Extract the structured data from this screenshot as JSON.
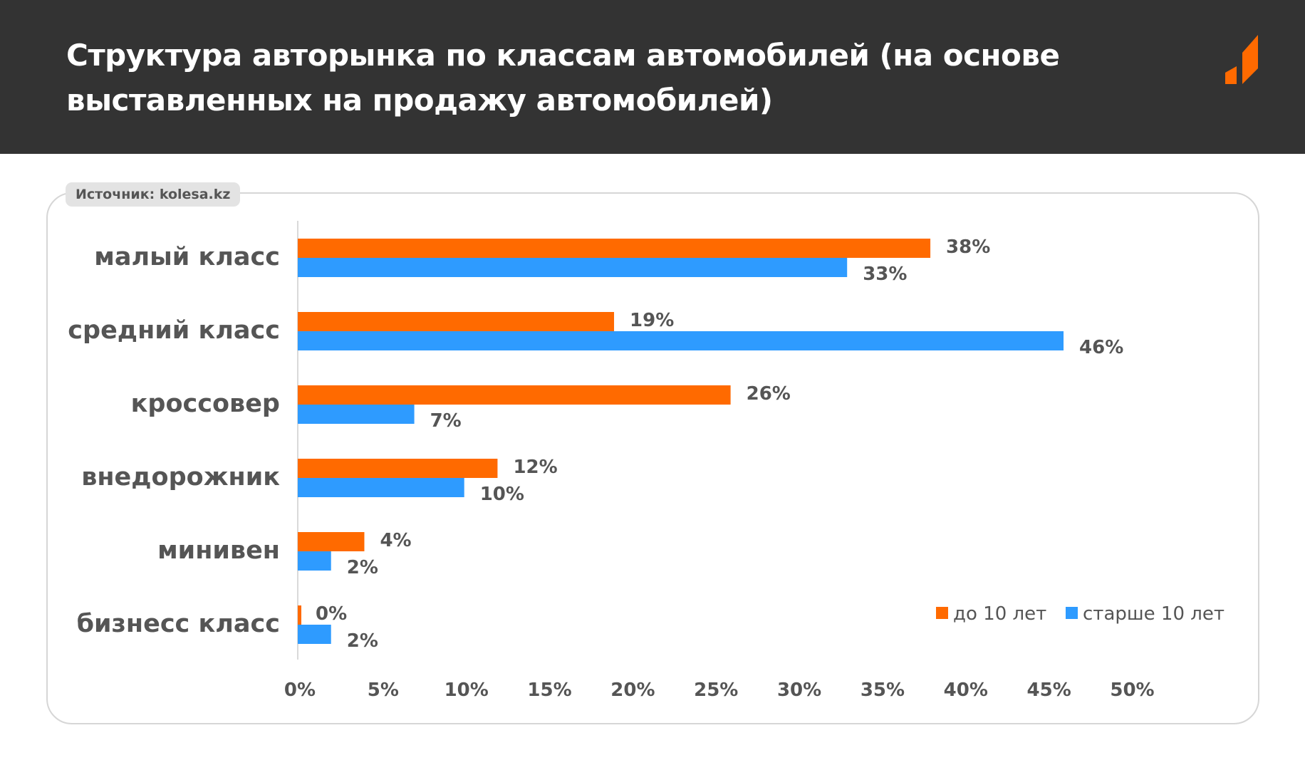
{
  "header": {
    "title": "Структура авторынка по классам автомобилей (на основе выставленных на продажу автомобилей)"
  },
  "source_label": "Источник: kolesa.kz",
  "colors": {
    "header_bg": "#333333",
    "accent": "#FF6A00",
    "series_1": "#FF6A00",
    "series_2": "#2E9BFF"
  },
  "chart_data": {
    "type": "bar",
    "orientation": "horizontal",
    "categories": [
      "малый класс",
      "средний класс",
      "кроссовер",
      "внедорожник",
      "минивен",
      "бизнесс класс"
    ],
    "series": [
      {
        "name": "до 10 лет",
        "color": "#FF6A00",
        "values": [
          38,
          19,
          26,
          12,
          4,
          0
        ],
        "labels": [
          "38%",
          "19%",
          "26%",
          "12%",
          "4%",
          "0%"
        ]
      },
      {
        "name": "старше 10 лет",
        "color": "#2E9BFF",
        "values": [
          33,
          46,
          7,
          10,
          2,
          2
        ],
        "labels": [
          "33%",
          "46%",
          "7%",
          "10%",
          "2%",
          "2%"
        ]
      }
    ],
    "xlim": [
      0,
      50
    ],
    "xticks": [
      "0%",
      "5%",
      "10%",
      "15%",
      "20%",
      "25%",
      "30%",
      "35%",
      "40%",
      "45%",
      "50%"
    ],
    "grid": false,
    "legend_position": "bottom-right"
  }
}
